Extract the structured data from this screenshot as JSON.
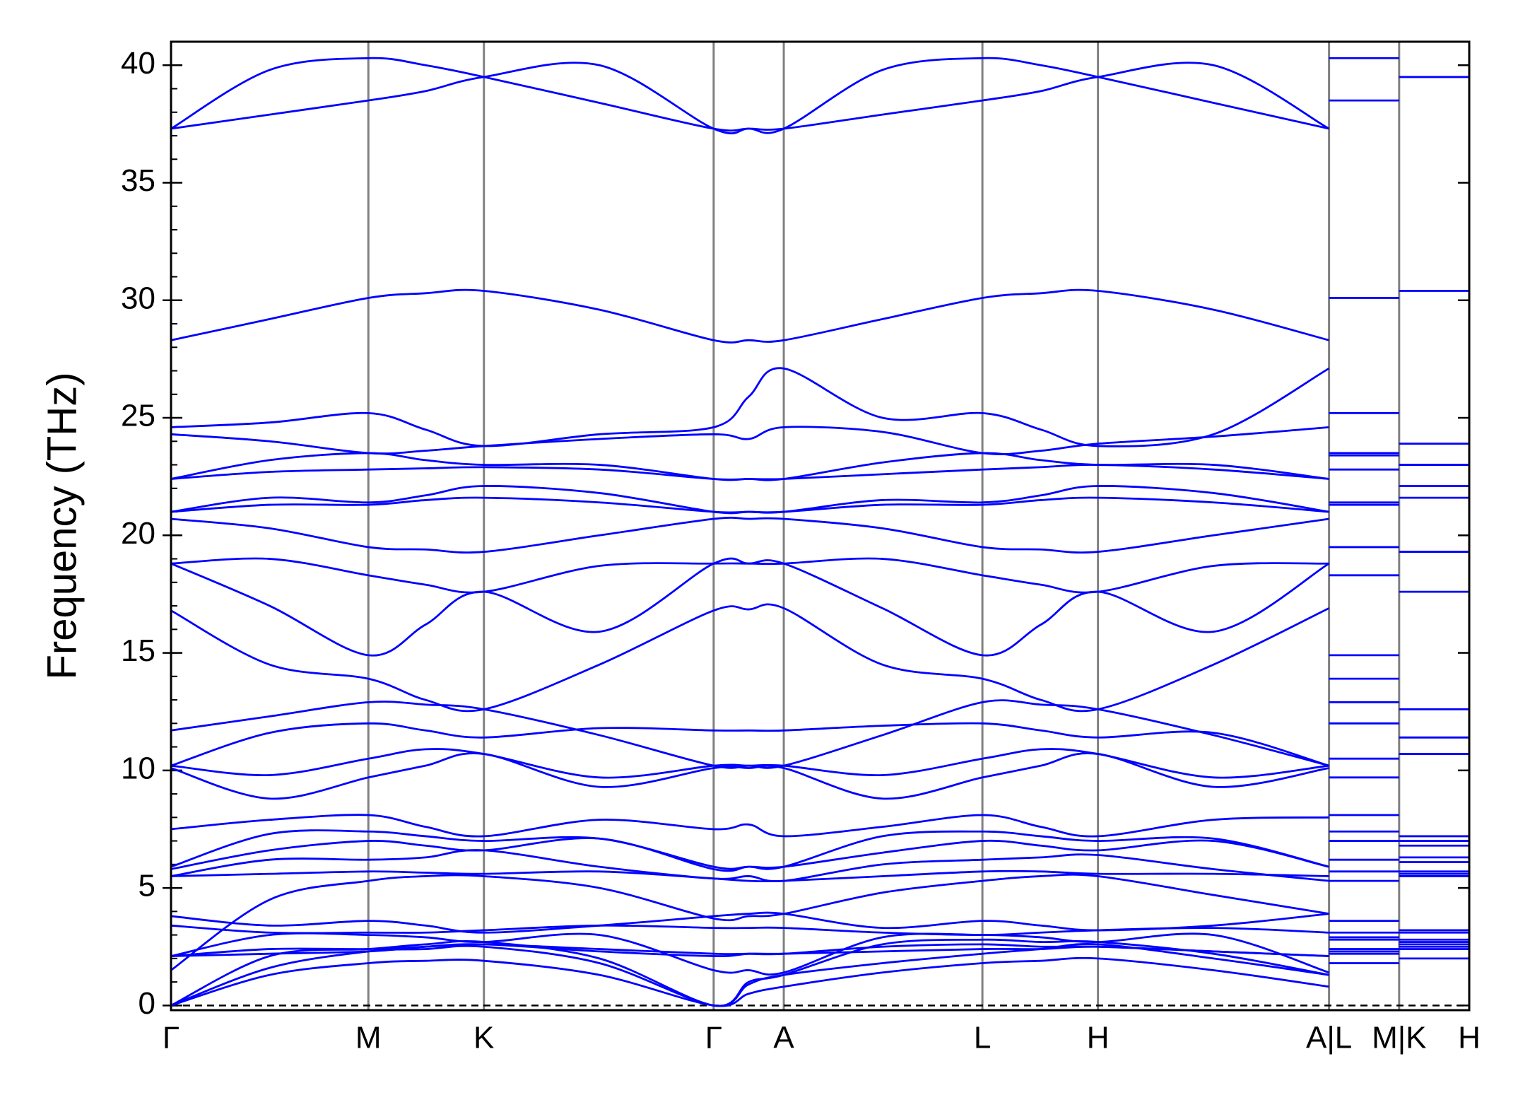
{
  "chart_data": {
    "type": "line",
    "ylabel": "Frequency (THz)",
    "color": "#0000ff",
    "xlim": [
      0,
      1
    ],
    "xticks": [
      {
        "value": 0,
        "label": "Γ"
      },
      {
        "value": 0.152,
        "label": "M"
      },
      {
        "value": 0.241,
        "label": "K"
      },
      {
        "value": 0.418,
        "label": "Γ"
      },
      {
        "value": 0.472,
        "label": "A"
      },
      {
        "value": 0.625,
        "label": "L"
      },
      {
        "value": 0.714,
        "label": "H"
      },
      {
        "value": 0.892,
        "label": "A|L"
      },
      {
        "value": 0.946,
        "label": "M|K"
      },
      {
        "value": 1.0,
        "label": "H"
      }
    ],
    "ylim": [
      -0.2,
      41.0
    ],
    "yticks": [
      0,
      5,
      10,
      15,
      20,
      25,
      30,
      35,
      40
    ],
    "yminor_step": 1,
    "grid": true,
    "hlines": [
      0
    ],
    "x": [
      0,
      0.076,
      0.152,
      0.196,
      0.241,
      0.33,
      0.418,
      0.445,
      0.472,
      0.548,
      0.625,
      0.67,
      0.714,
      0.803,
      0.892,
      null,
      0.892,
      0.946,
      null,
      0.946,
      1.0
    ],
    "series": [
      {
        "values": [
          37.3,
          39.8,
          40.3,
          40.0,
          39.5,
          38.4,
          37.3,
          37.3,
          37.3,
          39.8,
          40.3,
          40.0,
          39.5,
          38.4,
          37.3,
          null,
          40.3,
          40.3,
          null,
          39.5,
          39.5
        ]
      },
      {
        "values": [
          37.3,
          37.9,
          38.5,
          38.9,
          39.5,
          40.0,
          37.3,
          37.3,
          37.3,
          37.9,
          38.5,
          38.9,
          39.5,
          40.0,
          37.3,
          null,
          38.5,
          38.5,
          null,
          39.5,
          39.5
        ]
      },
      {
        "values": [
          28.3,
          29.2,
          30.1,
          30.3,
          30.4,
          29.6,
          28.3,
          28.3,
          28.3,
          29.2,
          30.1,
          30.3,
          30.4,
          29.6,
          28.3,
          null,
          30.1,
          30.1,
          null,
          30.4,
          30.4
        ]
      },
      {
        "values": [
          24.6,
          24.8,
          25.2,
          24.5,
          23.8,
          24.3,
          24.6,
          25.9,
          27.1,
          25.0,
          25.2,
          24.5,
          23.8,
          24.3,
          27.1,
          null,
          25.2,
          25.2,
          null,
          23.9,
          23.9
        ]
      },
      {
        "values": [
          24.3,
          24.0,
          23.5,
          23.6,
          23.8,
          24.1,
          24.3,
          24.1,
          24.6,
          24.4,
          23.5,
          23.6,
          23.9,
          24.2,
          24.6,
          null,
          23.5,
          23.5,
          null,
          23.0,
          23.0
        ]
      },
      {
        "values": [
          22.4,
          23.2,
          23.5,
          23.2,
          23.0,
          23.0,
          22.4,
          22.4,
          22.4,
          23.1,
          23.5,
          23.2,
          23.0,
          23.0,
          22.4,
          null,
          23.4,
          23.4,
          null,
          23.0,
          23.0
        ]
      },
      {
        "values": [
          22.4,
          22.7,
          22.8,
          22.85,
          22.9,
          22.8,
          22.4,
          22.4,
          22.4,
          22.6,
          22.8,
          22.9,
          23.0,
          22.8,
          22.4,
          null,
          22.8,
          22.8,
          null,
          22.1,
          22.1
        ]
      },
      {
        "values": [
          21.0,
          21.6,
          21.4,
          21.7,
          22.1,
          21.8,
          21.0,
          21.0,
          21.0,
          21.5,
          21.4,
          21.7,
          22.1,
          21.8,
          21.0,
          null,
          21.4,
          21.4,
          null,
          21.6,
          21.6
        ]
      },
      {
        "values": [
          21.0,
          21.3,
          21.3,
          21.5,
          21.6,
          21.4,
          21.0,
          21.0,
          21.0,
          21.3,
          21.3,
          21.5,
          21.6,
          21.4,
          21.0,
          null,
          21.3,
          21.3,
          null,
          19.3,
          19.3
        ]
      },
      {
        "values": [
          20.7,
          20.3,
          19.5,
          19.4,
          19.3,
          20.0,
          20.7,
          20.7,
          20.7,
          20.3,
          19.5,
          19.4,
          19.3,
          20.0,
          20.7,
          null,
          19.5,
          19.5,
          null,
          17.6,
          17.6
        ]
      },
      {
        "values": [
          18.8,
          19.0,
          18.3,
          17.9,
          17.6,
          18.7,
          18.8,
          18.8,
          18.8,
          19.0,
          18.3,
          17.9,
          17.6,
          18.7,
          18.8,
          null,
          18.3,
          18.3,
          null,
          12.6,
          12.6
        ]
      },
      {
        "values": [
          18.8,
          17.0,
          14.9,
          16.2,
          17.6,
          15.9,
          18.8,
          18.8,
          18.8,
          16.9,
          14.9,
          16.2,
          17.6,
          15.9,
          18.8,
          null,
          14.9,
          14.9,
          null,
          11.4,
          11.4
        ]
      },
      {
        "values": [
          16.8,
          14.5,
          13.9,
          13.0,
          12.6,
          14.5,
          16.8,
          16.85,
          16.9,
          14.5,
          13.9,
          13.0,
          12.6,
          14.5,
          16.9,
          null,
          13.9,
          13.9,
          null,
          10.7,
          10.7
        ]
      },
      {
        "values": [
          11.7,
          12.3,
          12.9,
          12.8,
          12.6,
          11.5,
          10.2,
          10.2,
          10.2,
          11.5,
          12.9,
          12.8,
          12.6,
          11.5,
          10.2,
          null,
          12.9,
          12.9,
          null,
          10.7,
          10.7
        ]
      },
      {
        "values": [
          10.2,
          11.6,
          12.0,
          11.7,
          11.4,
          11.8,
          11.7,
          11.7,
          11.7,
          11.9,
          12.0,
          11.7,
          11.4,
          11.6,
          10.2,
          null,
          12.0,
          12.0,
          null,
          11.4,
          11.4
        ]
      },
      {
        "values": [
          10.2,
          9.8,
          10.5,
          10.9,
          10.7,
          9.7,
          10.2,
          10.2,
          10.2,
          9.8,
          10.5,
          10.9,
          10.7,
          9.7,
          10.2,
          null,
          10.5,
          10.5,
          null,
          7.2,
          7.2
        ]
      },
      {
        "values": [
          10.1,
          8.8,
          9.7,
          10.2,
          10.7,
          9.3,
          10.1,
          10.1,
          10.1,
          8.8,
          9.7,
          10.2,
          10.7,
          9.3,
          10.1,
          null,
          9.7,
          9.7,
          null,
          7.0,
          7.0
        ]
      },
      {
        "values": [
          7.5,
          7.9,
          8.1,
          7.6,
          7.2,
          7.9,
          7.5,
          7.7,
          7.2,
          7.6,
          8.1,
          7.6,
          7.2,
          7.9,
          8.0,
          null,
          8.1,
          8.1,
          null,
          6.8,
          6.8
        ]
      },
      {
        "values": [
          5.9,
          7.3,
          7.4,
          7.2,
          7.0,
          7.1,
          5.9,
          5.9,
          5.9,
          7.2,
          7.4,
          7.2,
          7.0,
          7.1,
          5.9,
          null,
          7.4,
          7.4,
          null,
          6.3,
          6.3
        ]
      },
      {
        "values": [
          5.8,
          6.6,
          7.0,
          6.8,
          6.6,
          7.1,
          5.8,
          5.9,
          5.9,
          6.5,
          7.0,
          6.8,
          6.6,
          7.0,
          5.9,
          null,
          7.0,
          7.0,
          null,
          6.1,
          6.1
        ]
      },
      {
        "values": [
          5.5,
          6.2,
          6.2,
          6.3,
          6.6,
          5.9,
          5.4,
          5.5,
          5.3,
          6.0,
          6.2,
          6.3,
          6.4,
          5.8,
          5.3,
          null,
          6.2,
          6.2,
          null,
          5.7,
          5.7
        ]
      },
      {
        "values": [
          5.5,
          5.6,
          5.7,
          5.65,
          5.6,
          5.7,
          5.4,
          5.3,
          5.3,
          5.5,
          5.7,
          5.7,
          5.6,
          5.6,
          5.5,
          null,
          5.7,
          5.7,
          null,
          5.6,
          5.6
        ]
      },
      {
        "values": [
          1.5,
          4.5,
          5.3,
          5.5,
          5.5,
          5.0,
          3.7,
          3.8,
          3.9,
          4.8,
          5.3,
          5.5,
          5.5,
          4.7,
          3.9,
          null,
          5.3,
          5.3,
          null,
          5.5,
          5.5
        ]
      },
      {
        "values": [
          3.8,
          3.4,
          3.6,
          3.4,
          3.1,
          3.4,
          3.8,
          3.9,
          3.9,
          3.3,
          3.6,
          3.4,
          3.2,
          3.4,
          3.9,
          null,
          3.6,
          3.6,
          null,
          3.2,
          3.2
        ]
      },
      {
        "values": [
          3.4,
          3.1,
          3.1,
          3.1,
          3.2,
          3.4,
          3.3,
          3.3,
          3.3,
          3.1,
          3.0,
          3.1,
          3.2,
          3.3,
          3.1,
          null,
          3.1,
          3.1,
          null,
          3.1,
          3.1
        ]
      },
      {
        "values": [
          2.1,
          3.0,
          3.0,
          2.9,
          2.7,
          3.0,
          1.5,
          1.5,
          1.4,
          2.9,
          3.0,
          2.9,
          2.7,
          3.0,
          1.4,
          null,
          2.9,
          2.9,
          null,
          2.8,
          2.8
        ]
      },
      {
        "values": [
          2.1,
          2.4,
          2.4,
          2.5,
          2.6,
          2.4,
          2.2,
          2.2,
          2.2,
          2.5,
          2.6,
          2.5,
          2.5,
          2.3,
          2.1,
          null,
          2.4,
          2.4,
          null,
          2.6,
          2.6
        ]
      },
      {
        "values": [
          2.1,
          2.2,
          2.3,
          2.5,
          2.6,
          2.3,
          2.1,
          2.2,
          2.2,
          2.3,
          2.4,
          2.4,
          2.5,
          2.3,
          2.1,
          null,
          2.3,
          2.3,
          null,
          2.4,
          2.4
        ]
      },
      {
        "values": [
          0,
          1.3,
          1.8,
          1.9,
          1.9,
          1.3,
          0,
          0.5,
          0.8,
          1.4,
          1.8,
          1.9,
          2.0,
          1.5,
          0.8,
          null,
          1.8,
          1.8,
          null,
          2.0,
          2.0
        ]
      },
      {
        "values": [
          0,
          1.6,
          2.3,
          2.4,
          2.5,
          1.8,
          0,
          0.9,
          1.3,
          1.8,
          2.2,
          2.4,
          2.6,
          2.0,
          1.3,
          null,
          2.2,
          2.2,
          null,
          2.5,
          2.5
        ]
      },
      {
        "values": [
          0,
          2.1,
          2.4,
          2.6,
          2.7,
          2.0,
          0,
          1.0,
          1.3,
          2.6,
          2.8,
          2.7,
          2.7,
          2.2,
          1.3,
          null,
          2.8,
          2.8,
          null,
          2.7,
          2.7
        ]
      }
    ]
  }
}
